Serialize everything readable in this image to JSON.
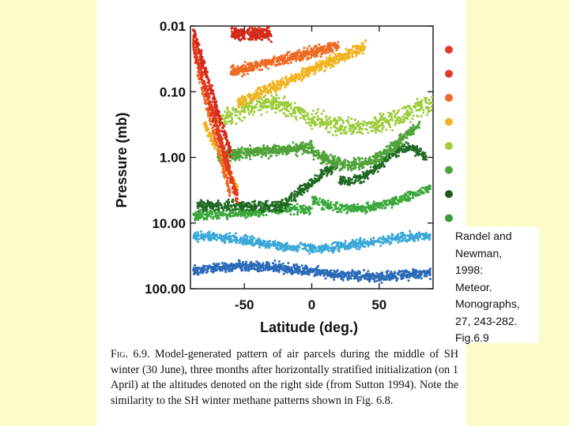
{
  "chart_data": {
    "type": "scatter",
    "title": "",
    "xlabel": "Latitude (deg.)",
    "ylabel": "Pressure (mb)",
    "y_scale": "log",
    "y_inverted": true,
    "xlim": [
      -90,
      90
    ],
    "ylim": [
      0.01,
      100
    ],
    "y_ticks": [
      0.01,
      0.1,
      1,
      10,
      100
    ],
    "y_tick_labels": [
      "0.01",
      "0.10",
      "1.00",
      "10.00",
      "100.00"
    ],
    "x_ticks": [
      -50,
      0,
      50
    ],
    "x_tick_labels": [
      "-50",
      "0",
      "50"
    ],
    "legend_placement": "right",
    "series": [
      {
        "color": "#d42a1a",
        "level": 0.02,
        "approx_lat_range": [
          -85,
          -30
        ]
      },
      {
        "color": "#e23b1c",
        "level": 0.1,
        "approx_lat_range": [
          -85,
          -55
        ]
      },
      {
        "color": "#ee6a22",
        "level": 0.2,
        "approx_lat_range": [
          -85,
          20
        ]
      },
      {
        "color": "#f2b21e",
        "level": 0.4,
        "approx_lat_range": [
          -80,
          40
        ]
      },
      {
        "color": "#9ccc3a",
        "level": 0.5,
        "approx_lat_range": [
          -70,
          90
        ]
      },
      {
        "color": "#4fa33a",
        "level": 1.0,
        "approx_lat_range": [
          -70,
          80
        ]
      },
      {
        "color": "#1f6a22",
        "level": 4.0,
        "approx_lat_range": [
          -85,
          85
        ]
      },
      {
        "color": "#3aa83a",
        "level": 5.0,
        "approx_lat_range": [
          -85,
          85
        ]
      },
      {
        "color": "#3aa8d8",
        "level": 20.0,
        "approx_lat_range": [
          -85,
          85
        ]
      },
      {
        "color": "#2a6ab8",
        "level": 60.0,
        "approx_lat_range": [
          -85,
          85
        ]
      }
    ]
  },
  "caption": {
    "fig_label": "Fig. 6.9.",
    "text": "Model-generated pattern of air parcels during the middle of SH winter (30 June), three months after horizontally stratified initialization (on 1 April) at the altitudes denoted on the right side (from Sutton 1994). Note the similarity to the SH winter methane patterns shown in Fig. 6.8."
  },
  "citation": {
    "lines": [
      "Randel and",
      "Newman,",
      "1998:",
      "Meteor.",
      "Monographs,",
      "27, 243-282.",
      "Fig.6.9"
    ]
  },
  "level_dots": {
    "colors": [
      "#e33a25",
      "#e33a25",
      "#ee6a2a",
      "#f2b224",
      "#a6cc3a",
      "#4fa33a",
      "#1f5a1f",
      "#3a9a3a"
    ]
  }
}
